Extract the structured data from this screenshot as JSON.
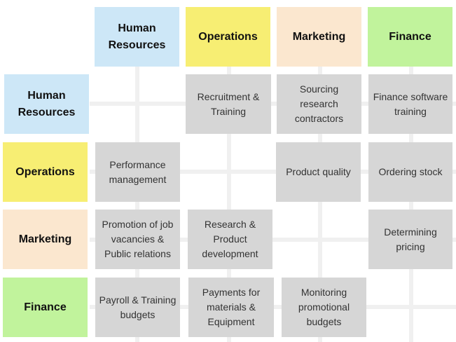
{
  "columns": {
    "hr": "Human Resources",
    "operations": "Operations",
    "marketing": "Marketing",
    "finance": "Finance"
  },
  "rows": {
    "hr": "Human Resources",
    "operations": "Operations",
    "marketing": "Marketing",
    "finance": "Finance"
  },
  "cells": {
    "hr_operations": "Recruitment & Training",
    "hr_marketing": "Sourcing research contractors",
    "hr_finance": "Finance software training",
    "operations_hr": "Performance management",
    "operations_marketing": "Product quality",
    "operations_finance": "Ordering stock",
    "marketing_hr": "Promotion of job vacancies & Public relations",
    "marketing_operations": "Research & Product development",
    "marketing_finance": "Determining pricing",
    "finance_hr": "Payroll & Training budgets",
    "finance_operations": "Payments for materials & Equipment",
    "finance_marketing": "Monitoring promotional budgets"
  },
  "colors": {
    "hr": "#cde7f7",
    "operations": "#f7ee73",
    "marketing": "#fbe7cf",
    "finance": "#c1f39c",
    "cell": "#d6d6d6"
  }
}
